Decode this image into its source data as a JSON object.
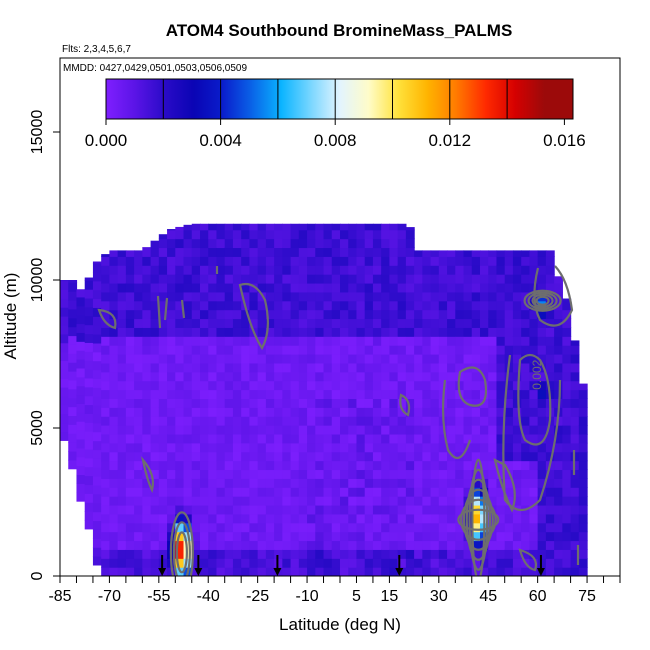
{
  "chart_data": {
    "type": "heatmap",
    "title": "ATOM4 Southbound BromineMass_PALMS",
    "subtitle_flights": "Flts: 2,3,4,5,6,7",
    "subtitle_dates": "MMDD: 0427,0429,0501,0503,0506,0509",
    "xlabel": "Latitude (deg N)",
    "ylabel": "Altitude (m)",
    "xlim": [
      -85,
      85
    ],
    "ylim": [
      0,
      17500
    ],
    "x_ticks": [
      -85,
      -70,
      -55,
      -40,
      -25,
      -10,
      5,
      15,
      30,
      45,
      60,
      75
    ],
    "y_ticks": [
      0,
      5000,
      10000,
      15000
    ],
    "colorbar": {
      "ticks": [
        "0.000",
        "0.004",
        "0.008",
        "0.012",
        "0.016"
      ],
      "tick_values": [
        0,
        0.004,
        0.008,
        0.012,
        0.016
      ],
      "range": [
        0,
        0.0163
      ],
      "colors": [
        "#7f1fff",
        "#5a14e6",
        "#2a0bc8",
        "#0a04b4",
        "#0a1ecc",
        "#0a64e8",
        "#0ab4ff",
        "#78d6ff",
        "#e2f4ff",
        "#fffcc8",
        "#ffe23c",
        "#ffb400",
        "#ff7a00",
        "#ff2a00",
        "#d60000",
        "#9c0a0a"
      ]
    },
    "flight_arrows_lat": [
      -54,
      -43,
      -19,
      18,
      61
    ],
    "contour_label": "0.002",
    "hotspots": [
      {
        "lat": -48,
        "alt": 900,
        "value": 0.016
      },
      {
        "lat": 42,
        "alt": 2000,
        "value": 0.013
      },
      {
        "lat": 61,
        "alt": 9200,
        "value": 0.006
      },
      {
        "lat": 62,
        "alt": 6200,
        "value": 0.004
      }
    ]
  }
}
